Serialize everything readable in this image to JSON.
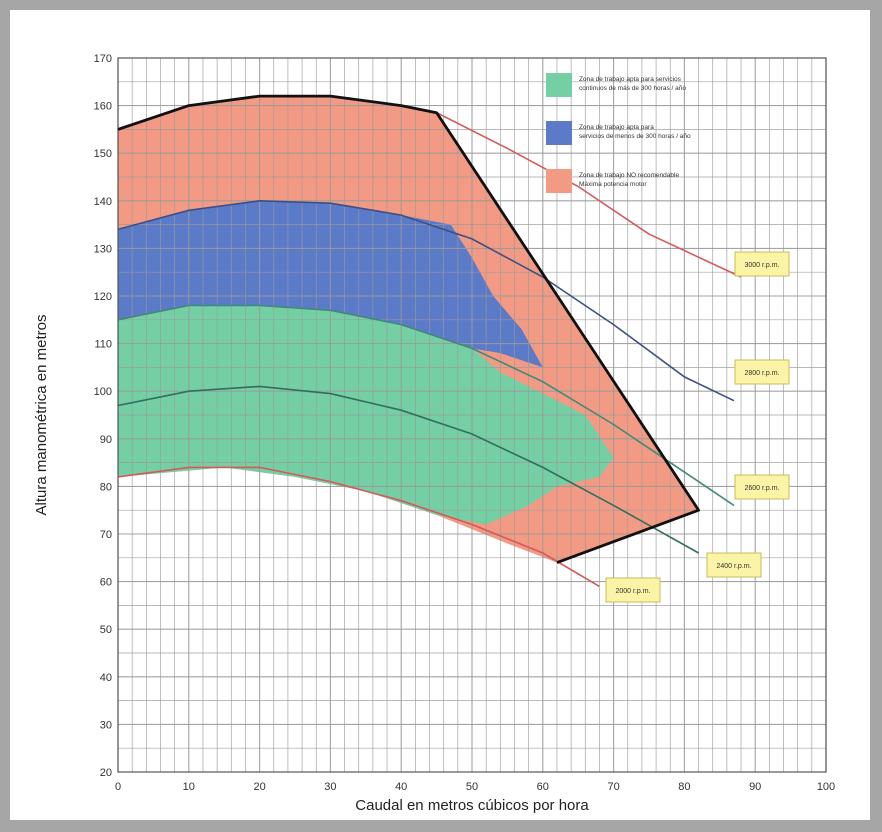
{
  "chart_data": {
    "type": "line",
    "xlabel": "Caudal en metros cúbicos por hora",
    "ylabel": "Altura manométrica en metros",
    "xlim": [
      0,
      100
    ],
    "ylim": [
      20,
      170
    ],
    "xticks": [
      "0",
      "10",
      "20",
      "30",
      "40",
      "50",
      "60",
      "70",
      "80",
      "90",
      "100"
    ],
    "yticks": [
      "20",
      "30",
      "40",
      "50",
      "60",
      "70",
      "80",
      "90",
      "100",
      "110",
      "120",
      "130",
      "140",
      "150",
      "160",
      "170"
    ],
    "grid": true,
    "series": [
      {
        "name": "3000 r.p.m.",
        "color": "#d45a5a",
        "x": [
          0,
          10,
          20,
          30,
          40,
          45,
          55,
          65,
          75,
          88
        ],
        "y": [
          155,
          160,
          162,
          162,
          160,
          158.5,
          151,
          143,
          133,
          124
        ]
      },
      {
        "name": "2800 r.p.m.",
        "color": "#3d4f86",
        "x": [
          0,
          10,
          20,
          30,
          40,
          50,
          60,
          70,
          80,
          87
        ],
        "y": [
          134,
          138,
          140,
          139.5,
          137,
          132,
          124,
          114,
          103,
          98
        ]
      },
      {
        "name": "2600 r.p.m.",
        "color": "#3f8a78",
        "x": [
          0,
          10,
          20,
          30,
          40,
          50,
          60,
          70,
          80,
          87
        ],
        "y": [
          115,
          118,
          118,
          117,
          114,
          109,
          102,
          93,
          83,
          76
        ]
      },
      {
        "name": "2400 r.p.m.",
        "color": "#2f6f5e",
        "x": [
          0,
          10,
          20,
          30,
          40,
          50,
          60,
          70,
          82
        ],
        "y": [
          97,
          100,
          101,
          99.5,
          96,
          91,
          84,
          76,
          66
        ]
      },
      {
        "name": "2000 r.p.m.",
        "color": "#d45a5a",
        "x": [
          0,
          10,
          20,
          30,
          40,
          50,
          60,
          68
        ],
        "y": [
          82,
          84,
          84,
          81,
          77,
          72,
          66,
          59
        ]
      }
    ],
    "zones": [
      {
        "name": "salmon",
        "color": "#f39a84"
      },
      {
        "name": "blue",
        "color": "#5b7ac8"
      },
      {
        "name": "green",
        "color": "#74cfa4"
      }
    ],
    "envelope": {
      "x": [
        0,
        10,
        20,
        30,
        40,
        45,
        82,
        62
      ],
      "y": [
        155,
        160,
        162,
        162,
        160,
        158.5,
        75,
        64
      ],
      "color": "#111111"
    },
    "legend": {
      "position": "top-right",
      "items": [
        {
          "color": "#74cfa4",
          "lines": [
            "Zona de trabajo apta para servicios",
            "continuos de más de 300 horas / año"
          ]
        },
        {
          "color": "#5b7ac8",
          "lines": [
            "Zona de trabajo apta para",
            "servicios de menos de 300 horas / año"
          ]
        },
        {
          "color": "#f39a84",
          "lines": [
            "Zona de trabajo NO recomendable",
            "Máxima potencia motor"
          ]
        }
      ]
    }
  }
}
